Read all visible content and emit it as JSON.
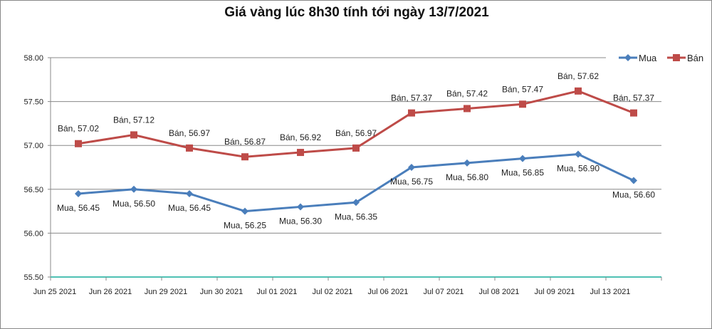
{
  "chart_data": {
    "type": "line",
    "title": "Giá vàng lúc 8h30 tính tới ngày 13/7/2021",
    "xlabel": "",
    "ylabel": "",
    "categories": [
      "Jun 25 2021",
      "Jun 26 2021",
      "Jun 29 2021",
      "Jun 30 2021",
      "Jul 01 2021",
      "Jul 02 2021",
      "Jul 06 2021",
      "Jul 07 2021",
      "Jul 08 2021",
      "Jul 09 2021",
      "Jul 13 2021"
    ],
    "ylim": [
      55.5,
      58.0
    ],
    "yticks": [
      "55.50",
      "56.00",
      "56.50",
      "57.00",
      "57.50",
      "58.00"
    ],
    "grid": true,
    "legend": "top-right",
    "series": [
      {
        "name": "Mua",
        "color": "#4a7ebb",
        "marker": "diamond",
        "values": [
          56.45,
          56.5,
          56.45,
          56.25,
          56.3,
          56.35,
          56.75,
          56.8,
          56.85,
          56.9,
          56.6
        ],
        "labels": [
          "Mua, 56.45",
          "Mua, 56.50",
          "Mua, 56.45",
          "Mua, 56.25",
          "Mua, 56.30",
          "Mua, 56.35",
          "Mua, 56.75",
          "Mua, 56.80",
          "Mua, 56.85",
          "Mua, 56.90",
          "Mua, 56.60"
        ]
      },
      {
        "name": "Bán",
        "color": "#be4b48",
        "marker": "square",
        "values": [
          57.02,
          57.12,
          56.97,
          56.87,
          56.92,
          56.97,
          57.37,
          57.42,
          57.47,
          57.62,
          57.37
        ],
        "labels": [
          "Bán, 57.02",
          "Bán, 57.12",
          "Bán, 56.97",
          "Bán, 56.87",
          "Bán, 56.92",
          "Bán, 56.97",
          "Bán, 57.37",
          "Bán, 57.42",
          "Bán, 57.47",
          "Bán, 57.62",
          "Bán, 57.37"
        ]
      }
    ]
  }
}
